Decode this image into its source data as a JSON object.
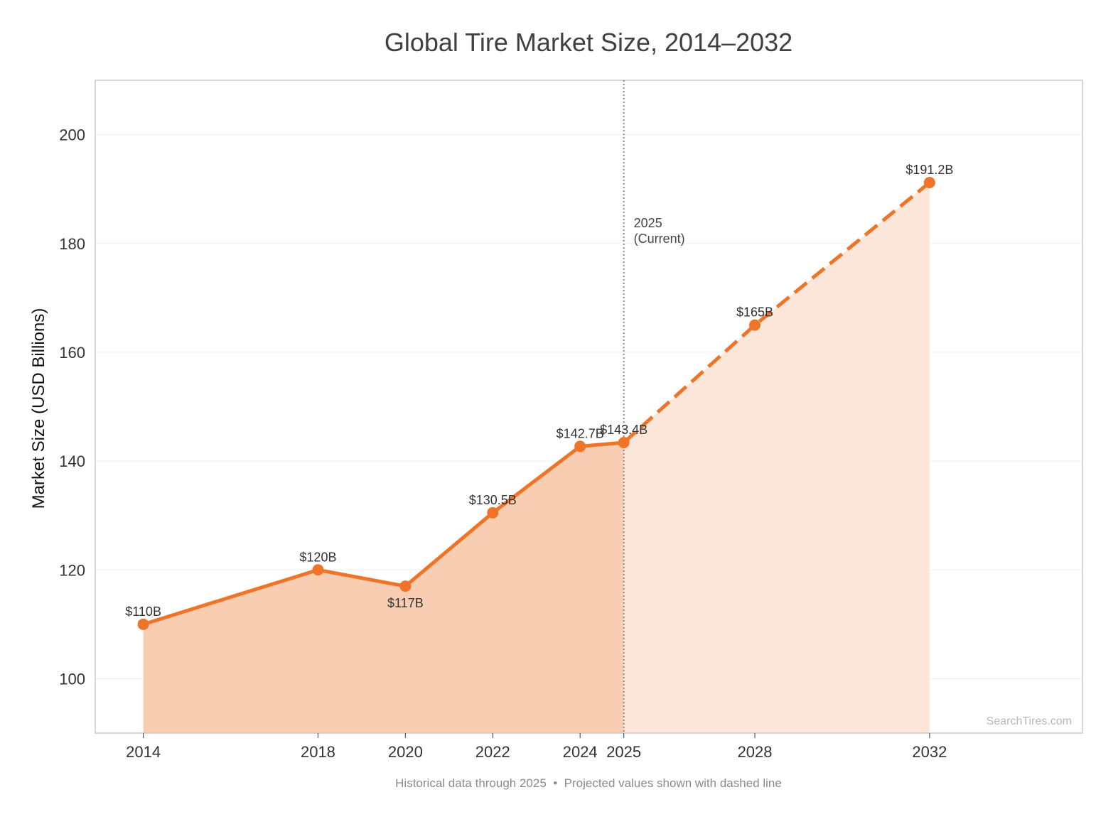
{
  "chart_data": {
    "type": "area",
    "title": "Global Tire Market Size, 2014–2032",
    "xlabel": "",
    "ylabel": "Market Size (USD Billions)",
    "x_ticks": [
      2014,
      2018,
      2020,
      2022,
      2024,
      2025,
      2028,
      2032
    ],
    "y_ticks": [
      100,
      120,
      140,
      160,
      180,
      200
    ],
    "xlim": [
      2012.9,
      2035.5
    ],
    "ylim": [
      90,
      210
    ],
    "grid": "horizontal",
    "colors": {
      "line": "#F07428",
      "historical_fill": "#F9CDB2",
      "projected_fill": "#FCE6DA",
      "current_marker": "#888888",
      "frame": "#c8c8c8",
      "grid": "#efefef"
    },
    "series": [
      {
        "segment": "historical",
        "style": "solid",
        "points": [
          {
            "x": 2014,
            "y": 110,
            "label": "$110B",
            "label_pos": "above"
          },
          {
            "x": 2018,
            "y": 120,
            "label": "$120B",
            "label_pos": "above"
          },
          {
            "x": 2020,
            "y": 117,
            "label": "$117B",
            "label_pos": "below"
          },
          {
            "x": 2022,
            "y": 130.5,
            "label": "$130.5B",
            "label_pos": "above"
          },
          {
            "x": 2024,
            "y": 142.7,
            "label": "$142.7B",
            "label_pos": "above"
          },
          {
            "x": 2025,
            "y": 143.4,
            "label": "$143.4B",
            "label_pos": "above"
          }
        ]
      },
      {
        "segment": "projected",
        "style": "dashed",
        "points": [
          {
            "x": 2025,
            "y": 143.4
          },
          {
            "x": 2028,
            "y": 165,
            "label": "$165B",
            "label_pos": "above"
          },
          {
            "x": 2032,
            "y": 191.2,
            "label": "$191.2B",
            "label_pos": "above"
          }
        ]
      }
    ],
    "annotations": [
      {
        "x": 2025,
        "line1": "2025",
        "line2": "(Current)"
      }
    ],
    "watermark": "SearchTires.com",
    "footnote": "Historical data through 2025  •  Projected values shown with dashed line"
  }
}
